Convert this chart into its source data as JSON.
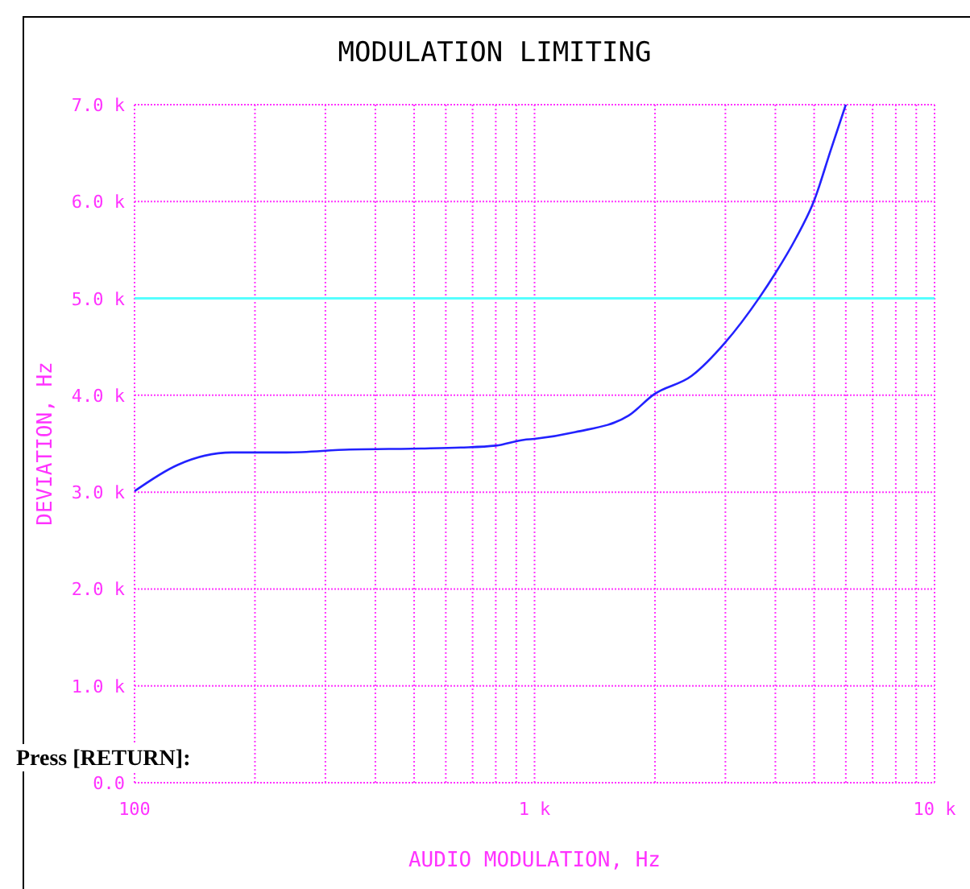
{
  "chart_data": {
    "type": "line",
    "title": "MODULATION LIMITING",
    "xlabel": "AUDIO MODULATION, Hz",
    "ylabel": "DEVIATION, Hz",
    "log": "x",
    "grid": true,
    "marker": "none",
    "line_style": "solid",
    "xlim": [
      100,
      10000
    ],
    "ylim": [
      0,
      7000
    ],
    "xticks": [
      {
        "value": 100,
        "label": "100"
      },
      {
        "value": 200,
        "label": null
      },
      {
        "value": 300,
        "label": null
      },
      {
        "value": 400,
        "label": null
      },
      {
        "value": 500,
        "label": null
      },
      {
        "value": 600,
        "label": null
      },
      {
        "value": 700,
        "label": null
      },
      {
        "value": 800,
        "label": null
      },
      {
        "value": 900,
        "label": null
      },
      {
        "value": 1000,
        "label": "1 k"
      },
      {
        "value": 2000,
        "label": null
      },
      {
        "value": 3000,
        "label": null
      },
      {
        "value": 4000,
        "label": null
      },
      {
        "value": 5000,
        "label": null
      },
      {
        "value": 6000,
        "label": null
      },
      {
        "value": 7000,
        "label": null
      },
      {
        "value": 8000,
        "label": null
      },
      {
        "value": 9000,
        "label": null
      },
      {
        "value": 10000,
        "label": "10 k"
      }
    ],
    "yticks": [
      {
        "value": 0,
        "label": "0.0"
      },
      {
        "value": 1000,
        "label": "1.0 k"
      },
      {
        "value": 2000,
        "label": "2.0 k"
      },
      {
        "value": 3000,
        "label": "3.0 k"
      },
      {
        "value": 4000,
        "label": "4.0 k"
      },
      {
        "value": 5000,
        "label": "5.0 k"
      },
      {
        "value": 6000,
        "label": "6.0 k"
      },
      {
        "value": 7000,
        "label": "7.0 k"
      }
    ],
    "ref_lines": [
      {
        "axis": "y",
        "value": 5000,
        "label": null,
        "color": "#55ffff"
      }
    ],
    "annotations": [
      "Press [RETURN]:"
    ],
    "series": [
      {
        "color": "#2222ff",
        "x": [
          100,
          128,
          175,
          240,
          345,
          520,
          654,
          800,
          940,
          1000,
          1266,
          1718,
          1990,
          2470,
          2990,
          3650,
          4000,
          4500,
          5000,
          5500,
          6000
        ],
        "values": [
          3010,
          3280,
          3410,
          3410,
          3440,
          3450,
          3460,
          3480,
          3540,
          3550,
          3620,
          3790,
          4010,
          4200,
          4540,
          5010,
          5260,
          5620,
          6010,
          6530,
          7000
        ]
      }
    ]
  }
}
